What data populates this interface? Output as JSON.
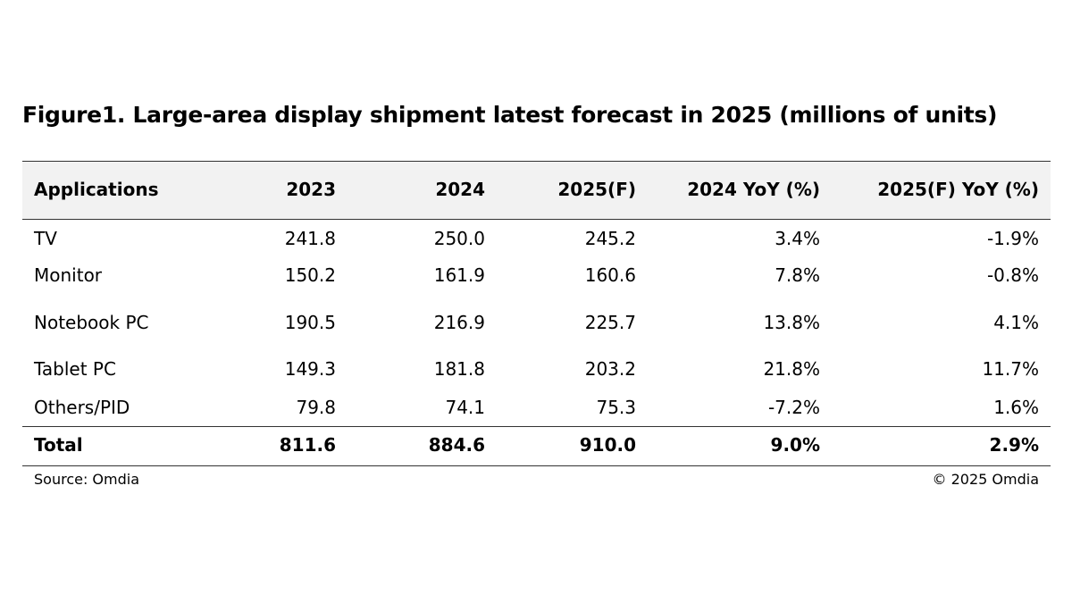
{
  "title": "Figure1. Large-area display shipment latest forecast in 2025 (millions of units)",
  "table": {
    "header": [
      "Applications",
      "2023",
      "2024",
      "2025(F)",
      "2024 YoY (%)",
      "2025(F) YoY (%)"
    ],
    "rows": [
      [
        "TV",
        "241.8",
        "250.0",
        "245.2",
        "3.4%",
        "-1.9%"
      ],
      [
        "Monitor",
        "150.2",
        "161.9",
        "160.6",
        "7.8%",
        "-0.8%"
      ],
      [
        "Notebook PC",
        "190.5",
        "216.9",
        "225.7",
        "13.8%",
        "4.1%"
      ],
      [
        "Tablet PC",
        "149.3",
        "181.8",
        "203.2",
        "21.8%",
        "11.7%"
      ],
      [
        "Others/PID",
        "79.8",
        "74.1",
        "75.3",
        "-7.2%",
        "1.6%"
      ]
    ],
    "total": [
      "Total",
      "811.6",
      "884.6",
      "910.0",
      "9.0%",
      "2.9%"
    ]
  },
  "footer": {
    "source": "Source: Omdia",
    "copyright": "© 2025 Omdia"
  }
}
